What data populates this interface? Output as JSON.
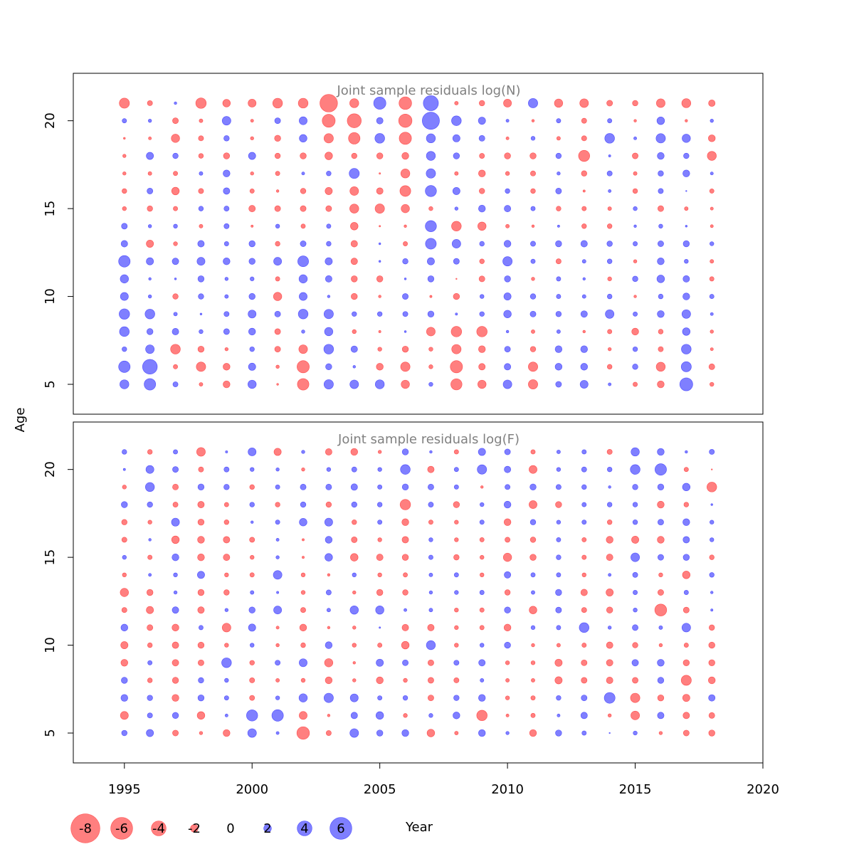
{
  "chart_data": {
    "type": "scatter",
    "xlabel": "Year",
    "ylabel": "Age",
    "xlim": [
      1993,
      2020
    ],
    "ylim": [
      3.3,
      22.7
    ],
    "x_ticks": [
      "1995",
      "2000",
      "2005",
      "2010",
      "2015",
      "2020"
    ],
    "y_ticks": [
      "5",
      "10",
      "15",
      "20"
    ],
    "colors": {
      "positive": "#0000ff",
      "negative": "#ff0000",
      "alpha": 0.5
    },
    "legend": {
      "values": [
        -8,
        -6,
        -4,
        -2,
        0,
        2,
        4,
        6
      ],
      "labels": [
        "-8",
        "-6",
        "-4",
        "-2",
        "0",
        "2",
        "4",
        "6"
      ]
    },
    "years": [
      1995,
      1996,
      1997,
      1998,
      1999,
      2000,
      2001,
      2002,
      2003,
      2004,
      2005,
      2006,
      2007,
      2008,
      2009,
      2010,
      2011,
      2012,
      2013,
      2014,
      2015,
      2016,
      2017,
      2018
    ],
    "ages": [
      5,
      6,
      7,
      8,
      9,
      10,
      11,
      12,
      13,
      14,
      15,
      16,
      17,
      18,
      19,
      20,
      21
    ],
    "panels": [
      {
        "title": "Joint sample residuals log(N)",
        "residuals": [
          [
            2.4,
            3.1,
            1.3,
            -0.9,
            -1.8,
            2.2,
            -0.4,
            -3.1,
            2.5,
            2.3,
            2.4,
            -2.2,
            1.0,
            -3.0,
            -2.2,
            2.3,
            -2.5,
            1.5,
            2.1,
            0.7,
            -1.1,
            -1.8,
            3.5,
            -1.0
          ],
          [
            3.1,
            4.0,
            -1.1,
            -2.5,
            -1.8,
            1.9,
            -0.8,
            -3.3,
            1.6,
            0.6,
            -1.8,
            -2.5,
            -1.0,
            -3.3,
            -1.7,
            1.7,
            -2.5,
            1.8,
            1.8,
            -1.2,
            1.4,
            -2.4,
            2.7,
            -1.5
          ],
          [
            1.2,
            2.3,
            -2.6,
            -1.6,
            -0.8,
            1.2,
            -1.5,
            -2.3,
            2.6,
            1.7,
            -1.0,
            -1.6,
            -1.0,
            -2.5,
            -1.8,
            1.5,
            -1.4,
            1.8,
            1.8,
            -0.8,
            1.2,
            -1.3,
            2.6,
            -0.7
          ],
          [
            2.6,
            1.6,
            1.7,
            1.0,
            1.5,
            1.8,
            -1.5,
            0.8,
            2.2,
            -1.0,
            -0.5,
            0.4,
            -2.3,
            -2.8,
            -2.8,
            0.6,
            -0.9,
            0.9,
            -0.6,
            -1.1,
            -1.8,
            -1.2,
            2.0,
            -0.8
          ],
          [
            2.8,
            2.6,
            0.9,
            0.4,
            1.3,
            2.1,
            1.5,
            2.6,
            2.5,
            1.2,
            1.2,
            1.3,
            1.6,
            0.5,
            1.2,
            2.0,
            1.5,
            1.4,
            1.7,
            2.3,
            1.1,
            1.8,
            2.3,
            0.7
          ],
          [
            2.1,
            0.8,
            -1.4,
            1.4,
            0.9,
            1.6,
            -2.2,
            2.1,
            0.6,
            -1.6,
            -0.6,
            1.5,
            -0.5,
            -1.6,
            1.0,
            1.9,
            1.4,
            1.1,
            0.9,
            1.2,
            -0.6,
            1.2,
            1.8,
            1.1
          ],
          [
            2.2,
            0.6,
            0.4,
            1.6,
            0.8,
            1.0,
            -1.1,
            2.2,
            1.7,
            -1.6,
            -1.6,
            0.4,
            1.6,
            -0.2,
            -1.5,
            1.6,
            -0.8,
            1.1,
            0.6,
            -1.0,
            1.4,
            2.0,
            1.7,
            -1.1
          ],
          [
            3.1,
            1.9,
            1.7,
            2.1,
            1.8,
            1.6,
            2.1,
            2.9,
            1.9,
            -1.7,
            0.4,
            1.4,
            1.9,
            1.5,
            -1.2,
            2.5,
            1.1,
            -1.3,
            0.9,
            1.2,
            -0.8,
            1.8,
            1.0,
            -0.9
          ],
          [
            1.7,
            -1.9,
            -1.0,
            1.7,
            1.1,
            1.6,
            -1.2,
            1.5,
            1.2,
            -1.7,
            0.4,
            -1.1,
            2.9,
            2.3,
            1.2,
            1.8,
            1.3,
            1.6,
            1.7,
            1.4,
            1.1,
            1.5,
            1.6,
            1.0
          ],
          [
            1.5,
            0.8,
            1.0,
            -0.9,
            1.3,
            -0.5,
            1.0,
            -1.1,
            1.1,
            -2.0,
            -0.3,
            -0.6,
            3.0,
            -2.6,
            -2.2,
            -0.9,
            -0.6,
            0.5,
            -1.2,
            -1.2,
            0.6,
            1.0,
            0.4,
            -0.7
          ],
          [
            -1.0,
            -1.4,
            -1.1,
            1.2,
            1.3,
            -1.7,
            -1.5,
            -1.5,
            -1.5,
            -2.4,
            -2.5,
            -2.2,
            -1.0,
            0.8,
            1.8,
            1.7,
            1.1,
            -1.2,
            -1.1,
            -0.9,
            1.0,
            -1.5,
            -0.9,
            -0.7
          ],
          [
            -1.2,
            1.5,
            -2.0,
            -1.3,
            1.7,
            -1.1,
            -0.6,
            -1.4,
            -1.9,
            -2.3,
            -1.7,
            -2.9,
            3.0,
            1.9,
            -1.4,
            1.2,
            -1.2,
            1.5,
            -0.5,
            0.7,
            -1.2,
            1.3,
            0.2,
            -1.1
          ],
          [
            -0.8,
            -0.9,
            -1.1,
            0.9,
            1.8,
            -0.8,
            -1.1,
            0.7,
            1.2,
            2.7,
            -0.3,
            -2.4,
            2.5,
            -0.9,
            -1.8,
            -1.0,
            -1.3,
            0.8,
            -1.4,
            1.3,
            -0.9,
            1.4,
            1.8,
            0.7
          ],
          [
            -0.8,
            1.9,
            1.4,
            -1.2,
            -1.6,
            1.9,
            -1.4,
            -1.6,
            -2.0,
            -1.4,
            -1.6,
            -1.8,
            2.4,
            1.6,
            -1.3,
            -1.6,
            -1.6,
            1.4,
            -3.0,
            0.5,
            -1.5,
            1.8,
            1.4,
            -2.4
          ],
          [
            -0.4,
            -0.7,
            -2.2,
            -1.3,
            1.4,
            -0.8,
            -1.6,
            2.0,
            -2.5,
            -3.1,
            2.6,
            -3.3,
            2.4,
            1.9,
            1.5,
            -0.7,
            1.0,
            -0.9,
            -1.3,
            2.6,
            0.7,
            2.5,
            2.2,
            -1.8
          ],
          [
            1.1,
            0.8,
            -1.5,
            -0.9,
            2.3,
            -0.7,
            1.5,
            2.1,
            -3.5,
            -3.8,
            1.7,
            -3.6,
            4.7,
            2.6,
            1.9,
            0.7,
            -0.6,
            1.1,
            -1.3,
            1.1,
            -0.6,
            2.0,
            -0.6,
            0.8
          ],
          [
            -2.7,
            -1.3,
            0.6,
            -2.8,
            -2.0,
            -2.1,
            -2.6,
            -2.6,
            -4.8,
            -2.4,
            3.3,
            -3.4,
            4.1,
            -0.9,
            -1.4,
            -2.1,
            2.5,
            -2.2,
            -2.3,
            -1.5,
            -1.4,
            -2.3,
            -2.4,
            -1.7
          ]
        ]
      },
      {
        "title": "Joint sample residuals log(F)",
        "residuals": [
          [
            1.4,
            1.9,
            -1.5,
            -0.8,
            -1.8,
            2.3,
            0.7,
            -3.4,
            -1.3,
            2.3,
            1.6,
            1.8,
            -2.0,
            -0.9,
            1.8,
            0.8,
            -1.8,
            1.6,
            1.1,
            0.2,
            1.0,
            -0.8,
            -1.5,
            -1.6
          ],
          [
            -2.1,
            1.3,
            1.6,
            -2.0,
            0.7,
            3.0,
            3.1,
            -2.1,
            -0.6,
            1.7,
            2.0,
            -1.0,
            1.0,
            1.8,
            -2.8,
            -0.7,
            -1.1,
            0.7,
            1.7,
            -0.8,
            -2.3,
            1.7,
            -1.7,
            -1.5
          ],
          [
            1.8,
            1.4,
            -1.8,
            1.6,
            1.1,
            -1.3,
            1.0,
            2.2,
            2.5,
            2.1,
            1.1,
            1.2,
            -1.5,
            1.4,
            1.8,
            -1.0,
            -1.1,
            1.2,
            1.5,
            2.9,
            -2.5,
            -1.6,
            -1.9,
            1.7
          ],
          [
            1.6,
            -1.2,
            -1.6,
            1.4,
            1.0,
            -1.3,
            -0.9,
            -1.0,
            -1.8,
            -0.8,
            -1.8,
            -1.0,
            -1.5,
            -1.3,
            0.9,
            -0.9,
            -0.9,
            -1.9,
            -1.5,
            -1.7,
            -1.5,
            1.6,
            -2.7,
            -1.8
          ],
          [
            -1.8,
            1.1,
            -1.7,
            -1.5,
            2.6,
            -1.2,
            1.3,
            2.1,
            -2.2,
            -0.6,
            1.9,
            1.5,
            -1.5,
            1.3,
            1.7,
            -1.0,
            -1.0,
            -1.9,
            -1.5,
            -1.7,
            1.7,
            1.8,
            -1.6,
            -1.6
          ],
          [
            -1.9,
            -1.2,
            -1.7,
            -1.6,
            -1.0,
            1.0,
            -0.8,
            -1.2,
            1.8,
            -1.0,
            -1.1,
            -2.0,
            2.4,
            -1.0,
            1.0,
            1.6,
            -0.8,
            -0.9,
            -1.1,
            -1.7,
            -1.4,
            -0.8,
            -1.1,
            -1.6
          ],
          [
            1.8,
            -1.5,
            -1.8,
            1.1,
            -2.3,
            1.9,
            -0.7,
            -1.8,
            -0.6,
            -0.8,
            0.3,
            -1.7,
            -1.7,
            -1.0,
            -1.1,
            -1.8,
            1.0,
            1.1,
            2.6,
            0.8,
            1.5,
            0.9,
            2.3,
            -1.4
          ],
          [
            -1.3,
            -1.9,
            1.7,
            -1.7,
            0.8,
            1.6,
            2.1,
            -1.3,
            0.9,
            2.2,
            2.2,
            0.7,
            0.9,
            -1.0,
            -1.1,
            1.6,
            -2.0,
            1.5,
            -1.3,
            -1.6,
            1.0,
            -3.2,
            -1.5,
            0.5
          ],
          [
            -2.2,
            -1.6,
            0.8,
            -1.6,
            -1.4,
            0.9,
            0.5,
            -1.0,
            1.3,
            -0.8,
            -1.6,
            -1.4,
            0.8,
            1.0,
            1.1,
            -1.4,
            0.9,
            1.6,
            -1.7,
            -1.9,
            1.1,
            -1.5,
            1.1,
            0.6
          ],
          [
            -1.0,
            0.7,
            1.0,
            1.9,
            -1.0,
            -1.1,
            2.3,
            -1.0,
            -0.6,
            1.0,
            -1.0,
            -1.1,
            0.9,
            1.1,
            -1.0,
            1.7,
            1.1,
            1.1,
            -1.0,
            0.7,
            1.3,
            -1.0,
            -2.0,
            1.2
          ],
          [
            1.0,
            -1.1,
            1.8,
            -1.8,
            -1.7,
            -1.0,
            0.8,
            -0.5,
            2.0,
            -2.0,
            -1.7,
            -1.6,
            1.1,
            -1.4,
            -1.0,
            -2.2,
            -1.6,
            1.2,
            -1.1,
            -1.7,
            2.3,
            1.5,
            1.6,
            -1.2
          ],
          [
            -1.3,
            0.6,
            -2.0,
            -1.8,
            -1.7,
            -1.3,
            0.7,
            -0.5,
            1.8,
            -1.5,
            -1.0,
            -1.7,
            1.0,
            -1.0,
            -1.1,
            -1.3,
            -1.4,
            1.1,
            -1.1,
            -1.8,
            -1.9,
            -1.8,
            1.7,
            1.0
          ],
          [
            -1.4,
            -1.0,
            2.1,
            -1.6,
            -1.2,
            0.6,
            1.1,
            2.0,
            2.1,
            -1.2,
            1.1,
            -1.8,
            -1.1,
            -1.0,
            1.1,
            -1.8,
            1.4,
            1.0,
            1.1,
            -1.2,
            1.2,
            1.5,
            1.8,
            1.0
          ],
          [
            1.6,
            1.4,
            -1.3,
            -1.7,
            -1.1,
            1.2,
            -1.2,
            1.4,
            -1.4,
            1.4,
            1.2,
            -2.8,
            1.3,
            -1.6,
            1.0,
            1.8,
            -2.1,
            -1.6,
            1.1,
            1.2,
            1.2,
            -1.8,
            -1.2,
            0.4
          ],
          [
            -1.0,
            2.4,
            -1.5,
            1.6,
            1.4,
            -1.2,
            1.1,
            1.5,
            1.5,
            1.7,
            1.1,
            1.6,
            1.5,
            1.1,
            -0.6,
            1.3,
            1.6,
            1.3,
            1.2,
            0.6,
            1.4,
            1.6,
            2.0,
            -2.6
          ],
          [
            0.5,
            2.1,
            1.5,
            -1.3,
            1.3,
            1.0,
            0.8,
            -0.8,
            1.0,
            1.3,
            1.0,
            2.6,
            -1.7,
            1.1,
            2.5,
            1.7,
            -2.1,
            1.0,
            1.3,
            1.2,
            2.6,
            3.1,
            -1.1,
            -0.2
          ],
          [
            1.2,
            -1.2,
            1.1,
            -2.3,
            0.5,
            2.1,
            -1.9,
            0.8,
            -1.7,
            -1.8,
            -0.8,
            1.6,
            0.6,
            -1.1,
            1.9,
            1.5,
            -1.1,
            0.9,
            1.1,
            -1.3,
            2.2,
            1.8,
            0.6,
            1.3
          ]
        ]
      }
    ]
  }
}
